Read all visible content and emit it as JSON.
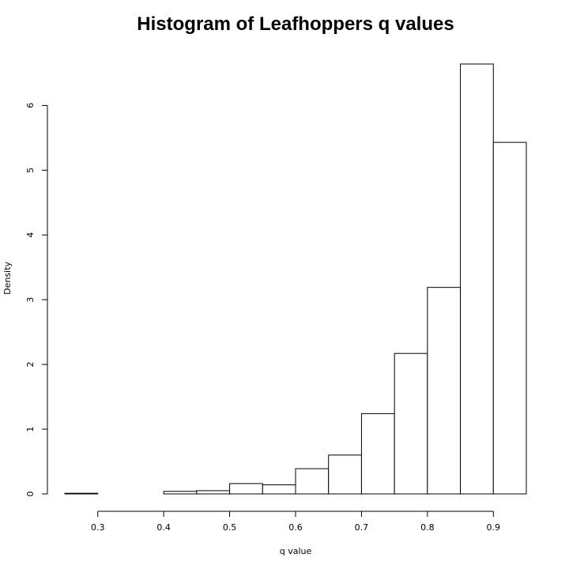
{
  "chart_data": {
    "type": "bar",
    "title": "Histogram of Leafhoppers q values",
    "xlabel": "q value",
    "ylabel": "Density",
    "bins": [
      {
        "start": 0.25,
        "end": 0.3,
        "density": 0.01
      },
      {
        "start": 0.3,
        "end": 0.35,
        "density": 0.0
      },
      {
        "start": 0.35,
        "end": 0.4,
        "density": 0.0
      },
      {
        "start": 0.4,
        "end": 0.45,
        "density": 0.04
      },
      {
        "start": 0.45,
        "end": 0.5,
        "density": 0.05
      },
      {
        "start": 0.5,
        "end": 0.55,
        "density": 0.16
      },
      {
        "start": 0.55,
        "end": 0.6,
        "density": 0.14
      },
      {
        "start": 0.6,
        "end": 0.65,
        "density": 0.39
      },
      {
        "start": 0.65,
        "end": 0.7,
        "density": 0.6
      },
      {
        "start": 0.7,
        "end": 0.75,
        "density": 1.24
      },
      {
        "start": 0.75,
        "end": 0.8,
        "density": 2.17
      },
      {
        "start": 0.8,
        "end": 0.85,
        "density": 3.19
      },
      {
        "start": 0.85,
        "end": 0.9,
        "density": 6.64
      },
      {
        "start": 0.9,
        "end": 0.95,
        "density": 5.43
      }
    ],
    "x_ticks": [
      "0.3",
      "0.4",
      "0.5",
      "0.6",
      "0.7",
      "0.8",
      "0.9"
    ],
    "y_ticks": [
      "0",
      "1",
      "2",
      "3",
      "4",
      "5",
      "6"
    ],
    "xlim": [
      0.25,
      0.95
    ],
    "ylim": [
      0,
      6.64
    ],
    "grid": false
  }
}
